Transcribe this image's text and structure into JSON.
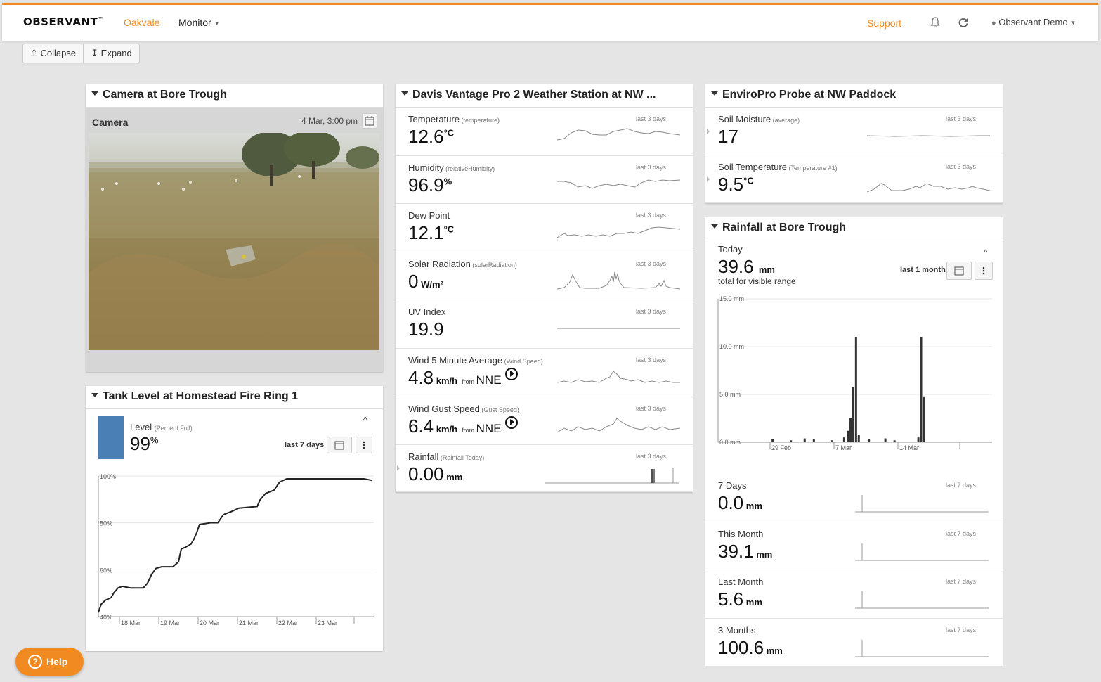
{
  "topbar": {
    "logo": "OBSERVANT",
    "logo_tm": "™",
    "org": "Oakvale",
    "monitor": "Monitor",
    "support": "Support",
    "user": "Observant Demo"
  },
  "toolbar": {
    "collapse": "Collapse",
    "expand": "Expand"
  },
  "camera": {
    "title": "Camera at Bore Trough",
    "label": "Camera",
    "time": "4 Mar, 3:00 pm"
  },
  "tank": {
    "title": "Tank Level at Homestead Fire Ring 1",
    "label": "Level",
    "label_sub": "(Percent Full)",
    "value": "99",
    "unit": "%",
    "range": "last 7 days",
    "chart_data": {
      "type": "line",
      "ylim": [
        40,
        100
      ],
      "yticks": [
        "100%",
        "80%",
        "60%",
        "40%"
      ],
      "xticks": [
        "18 Mar",
        "19 Mar",
        "20 Mar",
        "21 Mar",
        "22 Mar",
        "23 Mar"
      ]
    }
  },
  "weather": {
    "title": "Davis Vantage Pro 2 Weather Station at NW ...",
    "rows": [
      {
        "name": "Temperature",
        "sub": "(temperature)",
        "value": "12.6",
        "unit": "°C",
        "range": "last 3 days"
      },
      {
        "name": "Humidity",
        "sub": "(relativeHumidity)",
        "value": "96.9",
        "unit": "%",
        "range": "last 3 days"
      },
      {
        "name": "Dew Point",
        "sub": "",
        "value": "12.1",
        "unit": "°C",
        "range": "last 3 days"
      },
      {
        "name": "Solar Radiation",
        "sub": "(solarRadiation)",
        "value": "0",
        "unit": "W/m²",
        "range": "last 3 days"
      },
      {
        "name": "UV Index",
        "sub": "",
        "value": "19.9",
        "unit": "",
        "range": "last 3 days"
      },
      {
        "name": "Wind 5 Minute Average",
        "sub": "(Wind Speed)",
        "value": "4.8",
        "unit": "km/h",
        "from": "from",
        "dir": "NNE",
        "range": "last 3 days"
      },
      {
        "name": "Wind Gust Speed",
        "sub": "(Gust Speed)",
        "value": "6.4",
        "unit": "km/h",
        "from": "from",
        "dir": "NNE",
        "range": "last 3 days"
      },
      {
        "name": "Rainfall",
        "sub": "(Rainfall Today)",
        "value": "0.00",
        "unit": "mm",
        "range": "last 3 days"
      }
    ]
  },
  "enviro": {
    "title": "EnviroPro Probe at NW Paddock",
    "rows": [
      {
        "name": "Soil Moisture",
        "sub": "(average)",
        "value": "17",
        "unit": "",
        "range": "last 3 days"
      },
      {
        "name": "Soil Temperature",
        "sub": "(Temperature #1)",
        "value": "9.5",
        "unit": "°C",
        "range": "last 3 days"
      }
    ]
  },
  "rain": {
    "title": "Rainfall at Bore Trough",
    "today_label": "Today",
    "today_value": "39.6",
    "unit": "mm",
    "note": "total for visible range",
    "range": "last 1 month",
    "chart_data": {
      "type": "bar",
      "ylim": [
        0,
        15
      ],
      "yticks": [
        "15.0 mm",
        "10.0 mm",
        "5.0 mm",
        "0.0 mm"
      ],
      "xticks": [
        "29 Feb",
        "7 Mar",
        "14 Mar"
      ],
      "bars": [
        {
          "day": 2,
          "v": 0.3
        },
        {
          "day": 4,
          "v": 0.2
        },
        {
          "day": 5.5,
          "v": 0.4
        },
        {
          "day": 6.5,
          "v": 0.3
        },
        {
          "day": 8.5,
          "v": 0.2
        },
        {
          "day": 9.8,
          "v": 0.5
        },
        {
          "day": 10.2,
          "v": 1.2
        },
        {
          "day": 10.5,
          "v": 2.5
        },
        {
          "day": 10.8,
          "v": 5.8
        },
        {
          "day": 11.1,
          "v": 11.0
        },
        {
          "day": 11.4,
          "v": 0.8
        },
        {
          "day": 12.5,
          "v": 0.3
        },
        {
          "day": 14.3,
          "v": 0.4
        },
        {
          "day": 15.3,
          "v": 0.2
        },
        {
          "day": 17.9,
          "v": 0.5
        },
        {
          "day": 18.2,
          "v": 11.0
        },
        {
          "day": 18.5,
          "v": 4.8
        }
      ]
    },
    "rows": [
      {
        "name": "7 Days",
        "value": "0.0",
        "unit": "mm",
        "range": "last 7 days"
      },
      {
        "name": "This Month",
        "value": "39.1",
        "unit": "mm",
        "range": "last 7 days"
      },
      {
        "name": "Last Month",
        "value": "5.6",
        "unit": "mm",
        "range": "last 7 days"
      },
      {
        "name": "3 Months",
        "value": "100.6",
        "unit": "mm",
        "range": "last 7 days"
      }
    ]
  },
  "help": "Help"
}
